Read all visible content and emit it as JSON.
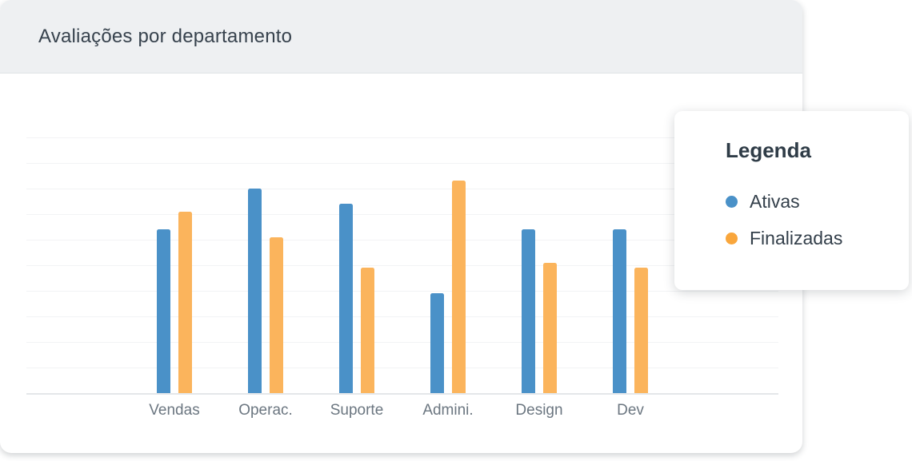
{
  "card": {
    "title": "Avaliações por departamento"
  },
  "legend": {
    "title": "Legenda",
    "items": [
      {
        "label": "Ativas",
        "color": "#4a91c8"
      },
      {
        "label": "Finalizadas",
        "color": "#f9a63c"
      }
    ]
  },
  "chart_data": {
    "type": "bar",
    "title": "Avaliações por departamento",
    "categories": [
      "Vendas",
      "Operac.",
      "Suporte",
      "Admini.",
      "Design",
      "Dev"
    ],
    "series": [
      {
        "name": "Ativas",
        "color": "#4a91c8",
        "values": [
          64,
          80,
          74,
          39,
          64,
          64
        ]
      },
      {
        "name": "Finalizadas",
        "color": "#fbb45c",
        "values": [
          71,
          61,
          49,
          83,
          51,
          49
        ]
      }
    ],
    "ylim": [
      0,
      100
    ],
    "grid": true,
    "gridline_count": 10,
    "y_axis_labels": false,
    "legend_position": "right",
    "xlabel": "",
    "ylabel": ""
  },
  "colors": {
    "header_bg": "#eef0f2",
    "card_bg": "#ffffff",
    "title_text": "#37424d",
    "axis_label_text": "#6b7680",
    "gridline": "#f2f3f5",
    "baseline": "#e4e7e9"
  }
}
